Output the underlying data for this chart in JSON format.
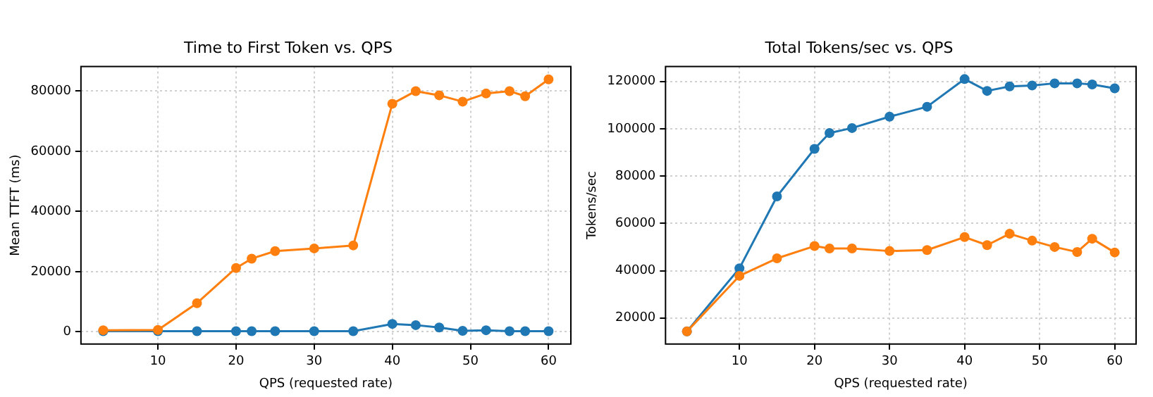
{
  "chart_data": [
    {
      "type": "line",
      "title": "Time to First Token vs. QPS",
      "xlabel": "QPS (requested rate)",
      "ylabel": "Mean TTFT (ms)",
      "x": [
        3,
        10,
        15,
        20,
        22,
        25,
        30,
        35,
        40,
        43,
        46,
        49,
        52,
        55,
        57,
        60
      ],
      "series": [
        {
          "color": "#1f77b4",
          "values": [
            200,
            200,
            200,
            200,
            200,
            200,
            200,
            200,
            2600,
            2200,
            1400,
            300,
            500,
            200,
            200,
            200
          ]
        },
        {
          "color": "#ff7f0e",
          "values": [
            500,
            600,
            9500,
            21200,
            24300,
            26800,
            27700,
            28700,
            75800,
            80000,
            78600,
            76500,
            79200,
            80000,
            78300,
            83900
          ]
        }
      ],
      "xlim": [
        0.15,
        62.85
      ],
      "xticks": [
        10,
        20,
        30,
        40,
        50,
        60
      ],
      "ylim": [
        -4100,
        88200
      ],
      "yticks": [
        0,
        20000,
        40000,
        60000,
        80000
      ],
      "grid": true,
      "legend": false,
      "marker": "circle",
      "line_style": "solid"
    },
    {
      "type": "line",
      "title": "Total Tokens/sec vs. QPS",
      "xlabel": "QPS (requested rate)",
      "ylabel": "Tokens/sec",
      "x": [
        3,
        10,
        15,
        20,
        22,
        25,
        30,
        35,
        40,
        43,
        46,
        49,
        52,
        55,
        57,
        60
      ],
      "series": [
        {
          "color": "#1f77b4",
          "values": [
            14300,
            41000,
            71400,
            91500,
            98200,
            100300,
            105100,
            109300,
            121000,
            116000,
            117900,
            118300,
            119200,
            119200,
            118700,
            117100
          ]
        },
        {
          "color": "#ff7f0e",
          "values": [
            14300,
            37800,
            45200,
            50400,
            49400,
            49400,
            48300,
            48700,
            54200,
            50800,
            55600,
            52700,
            50000,
            47900,
            53500,
            47700
          ]
        }
      ],
      "xlim": [
        0.15,
        62.85
      ],
      "xticks": [
        10,
        20,
        30,
        40,
        50,
        60
      ],
      "ylim": [
        8965,
        126335
      ],
      "yticks": [
        20000,
        40000,
        60000,
        80000,
        100000,
        120000
      ],
      "grid": true,
      "legend": false,
      "marker": "circle",
      "line_style": "solid"
    }
  ]
}
